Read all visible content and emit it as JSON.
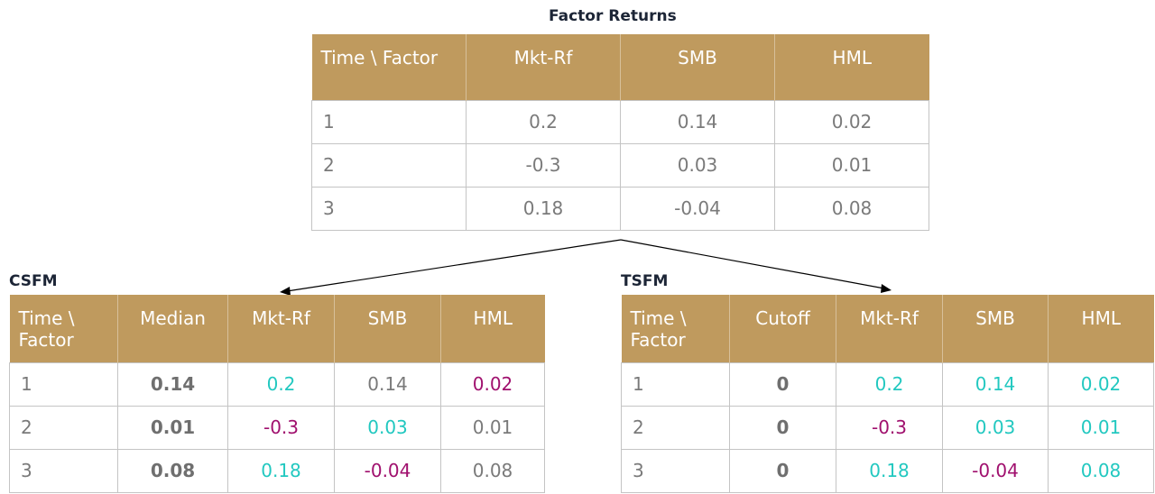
{
  "factor_returns": {
    "title": "Factor Returns",
    "headers": [
      "Time \\ Factor",
      "Mkt-Rf",
      "SMB",
      "HML"
    ],
    "rows": [
      [
        "1",
        "0.2",
        "0.14",
        "0.02"
      ],
      [
        "2",
        "-0.3",
        "0.03",
        "0.01"
      ],
      [
        "3",
        "0.18",
        "-0.04",
        "0.08"
      ]
    ]
  },
  "csfm": {
    "title": "CSFM",
    "headers": [
      "Time \\ Factor",
      "Median",
      "Mkt-Rf",
      "SMB",
      "HML"
    ],
    "rows": [
      {
        "cells": [
          "1",
          "0.14",
          "0.2",
          "0.14",
          "0.02"
        ],
        "colors": [
          "gray",
          "bold",
          "teal",
          "gray",
          "magenta"
        ]
      },
      {
        "cells": [
          "2",
          "0.01",
          "-0.3",
          "0.03",
          "0.01"
        ],
        "colors": [
          "gray",
          "bold",
          "magenta",
          "teal",
          "gray"
        ]
      },
      {
        "cells": [
          "3",
          "0.08",
          "0.18",
          "-0.04",
          "0.08"
        ],
        "colors": [
          "gray",
          "bold",
          "teal",
          "magenta",
          "gray"
        ]
      }
    ]
  },
  "tsfm": {
    "title": "TSFM",
    "headers": [
      "Time \\ Factor",
      "Cutoff",
      "Mkt-Rf",
      "SMB",
      "HML"
    ],
    "rows": [
      {
        "cells": [
          "1",
          "0",
          "0.2",
          "0.14",
          "0.02"
        ],
        "colors": [
          "gray",
          "bold",
          "teal",
          "teal",
          "teal"
        ]
      },
      {
        "cells": [
          "2",
          "0",
          "-0.3",
          "0.03",
          "0.01"
        ],
        "colors": [
          "gray",
          "bold",
          "magenta",
          "teal",
          "teal"
        ]
      },
      {
        "cells": [
          "3",
          "0",
          "0.18",
          "-0.04",
          "0.08"
        ],
        "colors": [
          "gray",
          "bold",
          "teal",
          "magenta",
          "teal"
        ]
      }
    ]
  },
  "colors": {
    "header_bg": "#bf9a5e",
    "positive_highlight": "#22c8c0",
    "negative_highlight": "#a0106e",
    "neutral_text": "#7a7a7a"
  }
}
